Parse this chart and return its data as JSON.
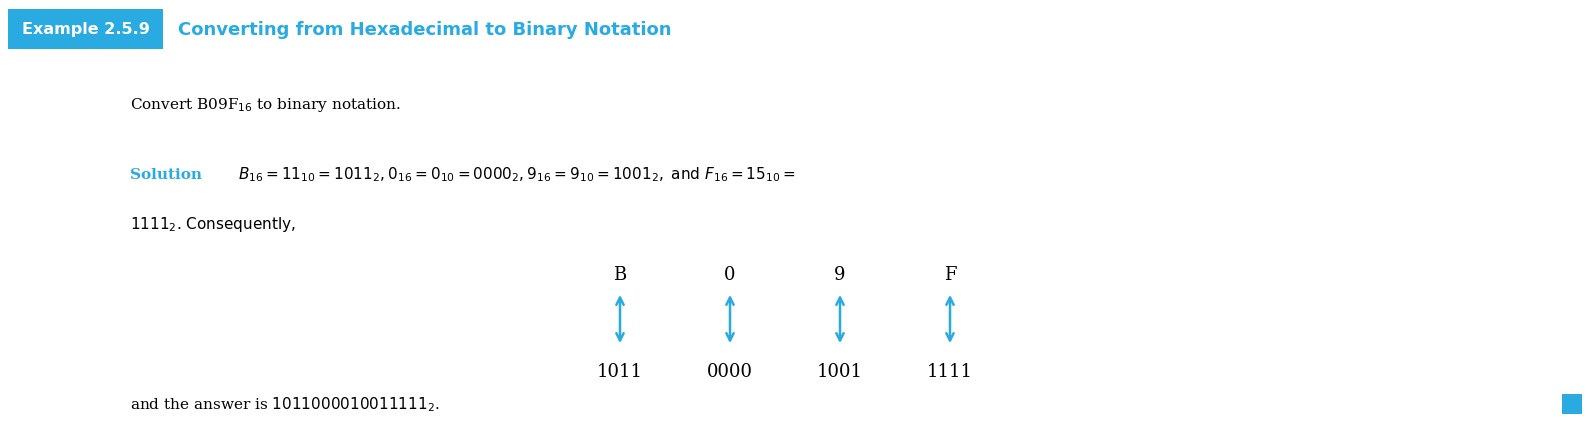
{
  "bg_color": "#ffffff",
  "example_box_color": "#29abe2",
  "example_box_text": "Example 2.5.9",
  "title_text": "Converting from Hexadecimal to Binary Notation",
  "title_color": "#29abe2",
  "hex_digits": [
    "B",
    "0",
    "9",
    "F"
  ],
  "bin_digits": [
    "1011",
    "0000",
    "1001",
    "1111"
  ],
  "arrow_color": "#29abe2",
  "blue_square_color": "#29abe2",
  "fig_width": 15.94,
  "fig_height": 4.39,
  "dpi": 100
}
